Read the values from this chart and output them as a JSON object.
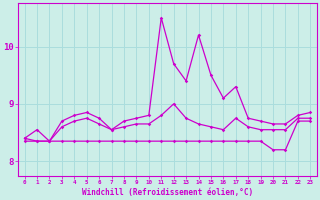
{
  "xlabel": "Windchill (Refroidissement éolien,°C)",
  "x": [
    0,
    1,
    2,
    3,
    4,
    5,
    6,
    7,
    8,
    9,
    10,
    11,
    12,
    13,
    14,
    15,
    16,
    17,
    18,
    19,
    20,
    21,
    22,
    23
  ],
  "line1": [
    8.35,
    8.35,
    8.35,
    8.35,
    8.35,
    8.35,
    8.35,
    8.35,
    8.35,
    8.35,
    8.35,
    8.35,
    8.35,
    8.35,
    8.35,
    8.35,
    8.35,
    8.35,
    8.35,
    8.35,
    8.2,
    8.2,
    8.7,
    8.7
  ],
  "line2": [
    8.4,
    8.35,
    8.35,
    8.6,
    8.7,
    8.75,
    8.65,
    8.55,
    8.6,
    8.65,
    8.65,
    8.8,
    9.0,
    8.75,
    8.65,
    8.6,
    8.55,
    8.75,
    8.6,
    8.55,
    8.55,
    8.55,
    8.75,
    8.75
  ],
  "line3": [
    8.4,
    8.55,
    8.35,
    8.7,
    8.8,
    8.85,
    8.75,
    8.55,
    8.7,
    8.75,
    8.8,
    10.5,
    9.7,
    9.4,
    10.2,
    9.5,
    9.1,
    9.3,
    8.75,
    8.7,
    8.65,
    8.65,
    8.8,
    8.85
  ],
  "background_color": "#cceee8",
  "grid_color": "#aadddd",
  "line_color": "#cc00cc",
  "ylim_min": 7.75,
  "ylim_max": 10.75,
  "xlim_min": -0.5,
  "xlim_max": 23.5,
  "yticks": [
    8,
    9,
    10
  ],
  "xticks": [
    0,
    1,
    2,
    3,
    4,
    5,
    6,
    7,
    8,
    9,
    10,
    11,
    12,
    13,
    14,
    15,
    16,
    17,
    18,
    19,
    20,
    21,
    22,
    23
  ]
}
